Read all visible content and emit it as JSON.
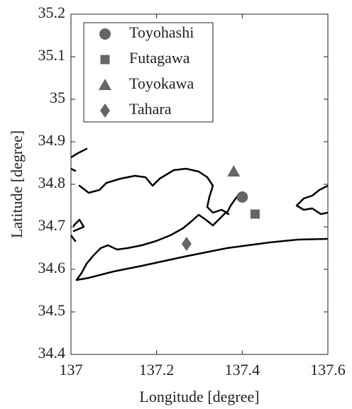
{
  "chart_data": {
    "type": "scatter",
    "xlabel": "Longitude [degree]",
    "ylabel": "Latitude [degree]",
    "xlim": [
      137,
      137.6
    ],
    "xticks": [
      137,
      137.2,
      137.4,
      137.6
    ],
    "ylim": [
      34.4,
      35.2
    ],
    "yticks": [
      34.4,
      34.5,
      34.6,
      34.7,
      34.8,
      34.9,
      35,
      35.1,
      35.2
    ],
    "legend": "upper left",
    "series": [
      {
        "name": "Toyohashi",
        "color": "#666666",
        "marker": "circle",
        "x": [
          137.4
        ],
        "values": [
          34.77
        ]
      },
      {
        "name": "Futagawa",
        "color": "#666666",
        "marker": "square",
        "x": [
          137.43
        ],
        "values": [
          34.73
        ]
      },
      {
        "name": "Toyokawa",
        "color": "#666666",
        "marker": "triangle",
        "x": [
          137.38
        ],
        "values": [
          34.83
        ]
      },
      {
        "name": "Tahara",
        "color": "#666666",
        "marker": "diamond",
        "x": [
          137.27
        ],
        "values": [
          34.66
        ]
      }
    ]
  }
}
